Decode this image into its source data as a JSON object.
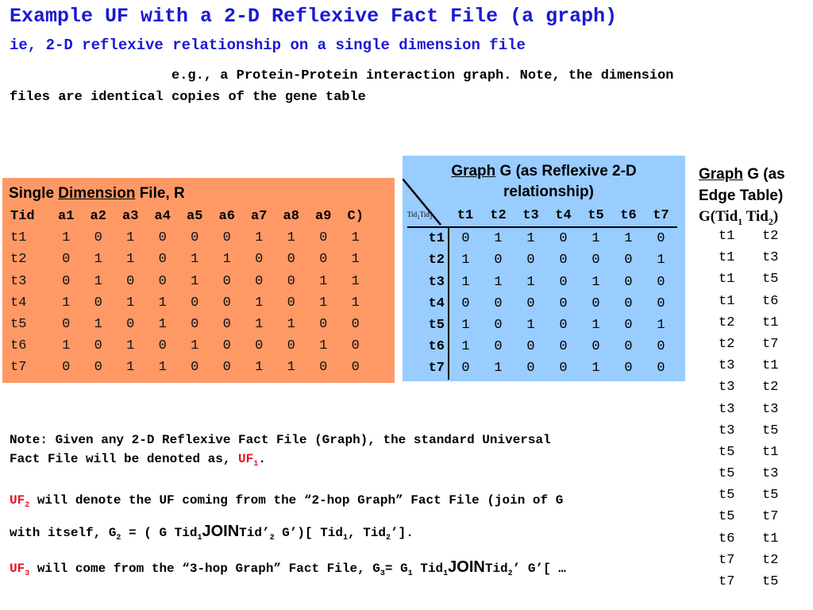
{
  "title": "Example UF with a 2-D Reflexive Fact File (a graph)",
  "subtitle": "ie, 2-D reflexive relationship on a single dimension file",
  "intro": {
    "line1": "e.g., a Protein-Protein interaction graph. Note, the dimension",
    "line2": "files are identical copies of the gene table"
  },
  "colors": {
    "heading_blue": "#1a1ad2",
    "dimension_panel": "#fe9966",
    "graph_panel": "#99ccff",
    "accent_red": "#e8141c"
  },
  "dimension_file": {
    "title_prefix": "Single ",
    "title_underlined": "Dimension",
    "title_suffix": " File, R",
    "columns": [
      "Tid",
      "a1",
      "a2",
      "a3",
      "a4",
      "a5",
      "a6",
      "a7",
      "a8",
      "a9",
      "C)"
    ],
    "rows": [
      [
        "t1",
        "1",
        "0",
        "1",
        "0",
        "0",
        "0",
        "1",
        "1",
        "0",
        "1"
      ],
      [
        "t2",
        "0",
        "1",
        "1",
        "0",
        "1",
        "1",
        "0",
        "0",
        "0",
        "1"
      ],
      [
        "t3",
        "0",
        "1",
        "0",
        "0",
        "1",
        "0",
        "0",
        "0",
        "1",
        "1"
      ],
      [
        "t4",
        "1",
        "0",
        "1",
        "1",
        "0",
        "0",
        "1",
        "0",
        "1",
        "1"
      ],
      [
        "t5",
        "0",
        "1",
        "0",
        "1",
        "0",
        "0",
        "1",
        "1",
        "0",
        "0"
      ],
      [
        "t6",
        "1",
        "0",
        "1",
        "0",
        "1",
        "0",
        "0",
        "0",
        "1",
        "0"
      ],
      [
        "t7",
        "0",
        "0",
        "1",
        "1",
        "0",
        "0",
        "1",
        "1",
        "0",
        "0"
      ]
    ]
  },
  "graph": {
    "title_underlined": "Graph",
    "title_rest_1": " G (as Reflexive 2-D",
    "title_rest_2": "relationship)",
    "corner_a": "Tid",
    "corner_a_sub": "1",
    "corner_b": "Tid",
    "corner_b_sub": "2",
    "columns": [
      "t1",
      "t2",
      "t3",
      "t4",
      "t5",
      "t6",
      "t7"
    ],
    "rows": [
      {
        "label": "t1",
        "cells": [
          "0",
          "1",
          "1",
          "0",
          "1",
          "1",
          "0"
        ]
      },
      {
        "label": "t2",
        "cells": [
          "1",
          "0",
          "0",
          "0",
          "0",
          "0",
          "1"
        ]
      },
      {
        "label": "t3",
        "cells": [
          "1",
          "1",
          "1",
          "0",
          "1",
          "0",
          "0"
        ]
      },
      {
        "label": "t4",
        "cells": [
          "0",
          "0",
          "0",
          "0",
          "0",
          "0",
          "0"
        ]
      },
      {
        "label": "t5",
        "cells": [
          "1",
          "0",
          "1",
          "0",
          "1",
          "0",
          "1"
        ]
      },
      {
        "label": "t6",
        "cells": [
          "1",
          "0",
          "0",
          "0",
          "0",
          "0",
          "0"
        ]
      },
      {
        "label": "t7",
        "cells": [
          "0",
          "1",
          "0",
          "0",
          "1",
          "0",
          "0"
        ]
      }
    ]
  },
  "edge_table": {
    "title_underlined": "Graph",
    "title_rest_1": " G (as",
    "title_rest_2": "Edge Table)",
    "sig_a": "G(Tid",
    "sig_a_sub": "1",
    "sig_b": " Tid",
    "sig_b_sub": "2",
    "sig_end": ")",
    "edges": [
      [
        "t1",
        "t2"
      ],
      [
        "t1",
        "t3"
      ],
      [
        "t1",
        "t5"
      ],
      [
        "t1",
        "t6"
      ],
      [
        "t2",
        "t1"
      ],
      [
        "t2",
        "t7"
      ],
      [
        "t3",
        "t1"
      ],
      [
        "t3",
        "t2"
      ],
      [
        "t3",
        "t3"
      ],
      [
        "t3",
        "t5"
      ],
      [
        "t5",
        "t1"
      ],
      [
        "t5",
        "t3"
      ],
      [
        "t5",
        "t5"
      ],
      [
        "t5",
        "t7"
      ],
      [
        "t6",
        "t1"
      ],
      [
        "t7",
        "t2"
      ],
      [
        "t7",
        "t5"
      ]
    ]
  },
  "notes": {
    "n1_a": "Note: Given any 2-D Reflexive Fact File (Graph), the standard Universal",
    "n1_b": "Fact File will be denoted as, ",
    "n1_uf": "UF",
    "n1_uf_sub": "1",
    "n1_end": ".",
    "n2_uf": "UF",
    "n2_uf_sub": "2",
    "n2_a": " will denote the UF coming from the “2-hop Graph” Fact File (join of G",
    "n2_b": "with itself, G",
    "n2_b_sub": "2",
    "n2_c": " = ( G Tid",
    "n2_c_sub": "1",
    "n2_join": "JOIN",
    "n2_d": "Tid’",
    "n2_d_sub": "2",
    "n2_e": " G’)[ Tid",
    "n2_e_sub": "1",
    "n2_f": ", Tid",
    "n2_f_sub": "2",
    "n2_end": "’].",
    "n3_uf": "UF",
    "n3_uf_sub": "3",
    "n3_a": " will come from the “3-hop Graph” Fact File, G",
    "n3_a_sub": "3",
    "n3_b": "= G",
    "n3_b_sub": "1",
    "n3_c": " Tid",
    "n3_c_sub": "1",
    "n3_join": "JOIN",
    "n3_d": "Tid",
    "n3_d_sub": "2",
    "n3_end": "’ G’[ …"
  }
}
